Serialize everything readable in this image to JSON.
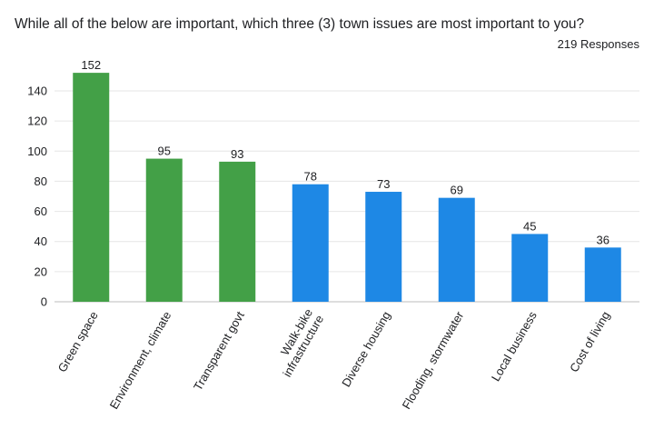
{
  "chart_data": {
    "type": "bar",
    "title": "While all of the below are important, which three (3) town issues are most important to you?",
    "subtitle": "219 Responses",
    "categories": [
      "Green space",
      "Environment, climate",
      "Transparent govt",
      "Walk-bike infrastructure",
      "Diverse housing",
      "Flooding, stormwater",
      "Local business",
      "Cost of living"
    ],
    "category_lines": [
      [
        "Green space"
      ],
      [
        "Environment, climate"
      ],
      [
        "Transparent govt"
      ],
      [
        "Walk-bike",
        "infrastructure"
      ],
      [
        "Diverse housing"
      ],
      [
        "Flooding, stormwater"
      ],
      [
        "Local business"
      ],
      [
        "Cost of living"
      ]
    ],
    "values": [
      152,
      95,
      93,
      78,
      73,
      69,
      45,
      36
    ],
    "bar_colors": [
      "#43a047",
      "#43a047",
      "#43a047",
      "#1e88e5",
      "#1e88e5",
      "#1e88e5",
      "#1e88e5",
      "#1e88e5"
    ],
    "ylim": [
      0,
      150
    ],
    "yticks": [
      0,
      20,
      40,
      60,
      80,
      100,
      120,
      140
    ],
    "grid": true,
    "xlabel": "",
    "ylabel": ""
  }
}
